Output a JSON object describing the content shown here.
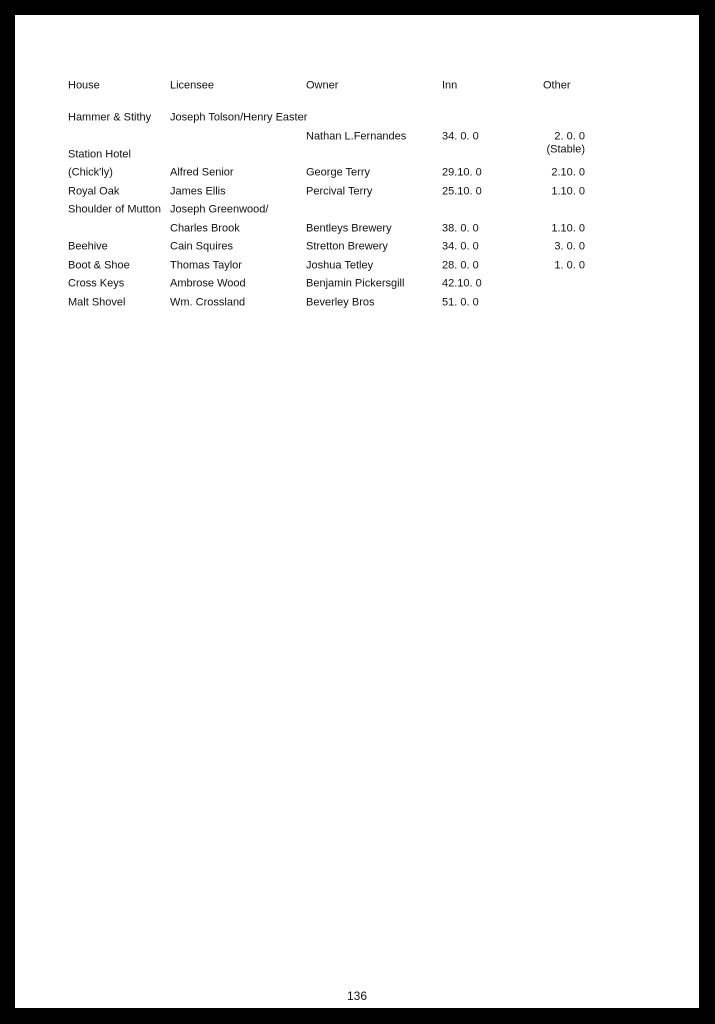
{
  "table": {
    "headers": [
      "House",
      "Licensee",
      "Owner",
      "Inn",
      "Other"
    ],
    "rows": [
      {
        "house": "Hammer & Stithy",
        "licensee": "Joseph Tolson/Henry Easter",
        "owner": "",
        "inn": "",
        "other": ""
      },
      {
        "house": "",
        "licensee": "",
        "owner": "Nathan L.Fernandes",
        "inn": "34. 0. 0",
        "other": "2. 0. 0"
      },
      {
        "house": "Station Hotel",
        "licensee": "",
        "owner": "",
        "inn": "",
        "other": "(Stable)"
      },
      {
        "house": "(Chick'ly)",
        "licensee": "Alfred Senior",
        "owner": "George Terry",
        "inn": "29.10. 0",
        "other": "2.10. 0"
      },
      {
        "house": "Royal Oak",
        "licensee": "James Ellis",
        "owner": "Percival Terry",
        "inn": "25.10. 0",
        "other": "1.10. 0"
      },
      {
        "house": "Shoulder of Mutton",
        "licensee": "Joseph Greenwood/",
        "owner": "",
        "inn": "",
        "other": ""
      },
      {
        "house": "",
        "licensee": "Charles Brook",
        "owner": "Bentleys Brewery",
        "inn": "38. 0. 0",
        "other": "1.10. 0"
      },
      {
        "house": "Beehive",
        "licensee": "Cain Squires",
        "owner": "Stretton Brewery",
        "inn": "34. 0. 0",
        "other": "3. 0. 0"
      },
      {
        "house": "Boot & Shoe",
        "licensee": "Thomas Taylor",
        "owner": "Joshua Tetley",
        "inn": "28. 0. 0",
        "other": "1. 0. 0"
      },
      {
        "house": "Cross Keys",
        "licensee": "Ambrose Wood",
        "owner": "Benjamin Pickersgill",
        "inn": "42.10. 0",
        "other": ""
      },
      {
        "house": "Malt Shovel",
        "licensee": "Wm. Crossland",
        "owner": "Beverley Bros",
        "inn": "51. 0. 0",
        "other": ""
      }
    ]
  },
  "page_number": "136"
}
